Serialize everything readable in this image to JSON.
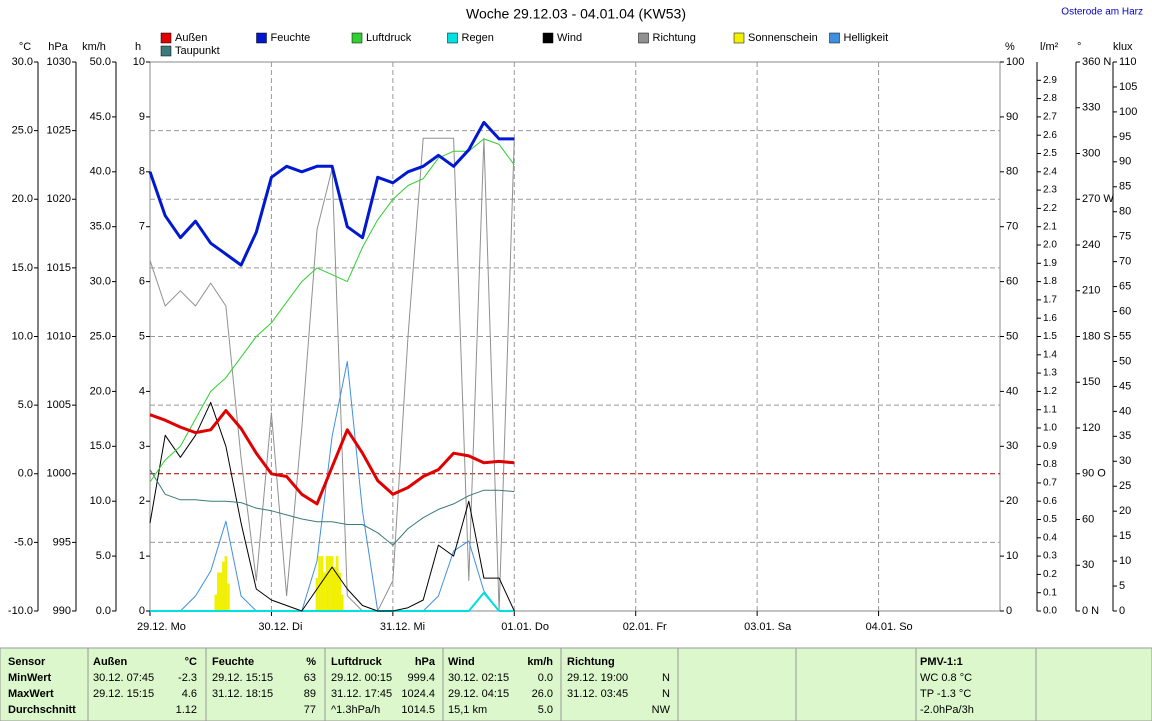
{
  "chart_data": {
    "type": "line",
    "title": "Woche 29.12.03 - 04.01.04 (KW53)",
    "location": "Osterode am Harz",
    "xlim": [
      0,
      168
    ],
    "xticks": [
      {
        "value": 0,
        "label": "29.12. Mo"
      },
      {
        "value": 24,
        "label": "30.12. Di"
      },
      {
        "value": 48,
        "label": "31.12. Mi"
      },
      {
        "value": 72,
        "label": "01.01. Do"
      },
      {
        "value": 96,
        "label": "02.01. Fr"
      },
      {
        "value": 120,
        "label": "03.01. Sa"
      },
      {
        "value": 144,
        "label": "04.01. So"
      }
    ],
    "x": [
      0,
      3,
      6,
      9,
      12,
      15,
      18,
      21,
      24,
      27,
      30,
      33,
      36,
      39,
      42,
      45,
      48,
      51,
      54,
      57,
      60,
      63,
      66,
      69,
      72
    ],
    "grid": true,
    "zero_line_color": "#a00000",
    "axes": {
      "c": {
        "unit": "°C",
        "lim": [
          -10,
          30
        ],
        "ticks": [
          {
            "value": -10,
            "label": "-10.0"
          },
          {
            "value": -5,
            "label": "-5.0"
          },
          {
            "value": 0,
            "label": "0.0"
          },
          {
            "value": 5,
            "label": "5.0"
          },
          {
            "value": 10,
            "label": "10.0"
          },
          {
            "value": 15,
            "label": "15.0"
          },
          {
            "value": 20,
            "label": "20.0"
          },
          {
            "value": 25,
            "label": "25.0"
          },
          {
            "value": 30,
            "label": "30.0"
          }
        ]
      },
      "hpa": {
        "unit": "hPa",
        "lim": [
          990,
          1030
        ],
        "ticks": [
          990,
          995,
          1000,
          1005,
          1010,
          1015,
          1020,
          1025,
          1030
        ]
      },
      "kmh": {
        "unit": "km/h",
        "lim": [
          0,
          50
        ],
        "ticks": [
          {
            "value": 0,
            "label": "0.0"
          },
          {
            "value": 5,
            "label": "5.0"
          },
          {
            "value": 10,
            "label": "10.0"
          },
          {
            "value": 15,
            "label": "15.0"
          },
          {
            "value": 20,
            "label": "20.0"
          },
          {
            "value": 25,
            "label": "25.0"
          },
          {
            "value": 30,
            "label": "30.0"
          },
          {
            "value": 35,
            "label": "35.0"
          },
          {
            "value": 40,
            "label": "40.0"
          },
          {
            "value": 45,
            "label": "45.0"
          },
          {
            "value": 50,
            "label": "50.0"
          }
        ]
      },
      "h": {
        "unit": "h",
        "lim": [
          0,
          10
        ],
        "ticks": [
          0,
          1,
          2,
          3,
          4,
          5,
          6,
          7,
          8,
          9,
          10
        ]
      },
      "pct": {
        "unit": "%",
        "lim": [
          0,
          100
        ],
        "ticks": [
          0,
          10,
          20,
          30,
          40,
          50,
          60,
          70,
          80,
          90,
          100
        ]
      },
      "mm": {
        "unit": "l/m²",
        "lim": [
          0,
          3
        ],
        "ticks": [
          {
            "value": 0,
            "label": "0.0"
          },
          0.1,
          0.2,
          0.3,
          0.4,
          0.5,
          0.6,
          0.7,
          0.8,
          0.9,
          {
            "value": 1,
            "label": "1.0"
          },
          1.1,
          1.2,
          1.3,
          1.4,
          1.5,
          1.6,
          1.7,
          1.8,
          1.9,
          {
            "value": 2,
            "label": "2.0"
          },
          2.1,
          2.2,
          2.3,
          2.4,
          2.5,
          2.6,
          2.7,
          2.8,
          2.9
        ]
      },
      "deg": {
        "unit": "°",
        "lim": [
          0,
          360
        ],
        "ticks": [
          {
            "value": 0,
            "label": "0 N"
          },
          30,
          60,
          {
            "value": 90,
            "label": "90 O"
          },
          120,
          150,
          {
            "value": 180,
            "label": "180 S"
          },
          210,
          240,
          {
            "value": 270,
            "label": "270 W"
          },
          300,
          330,
          {
            "value": 360,
            "label": "360 N"
          }
        ]
      },
      "klux": {
        "unit": "klux",
        "lim": [
          0,
          110
        ],
        "ticks": [
          0,
          5,
          10,
          15,
          20,
          25,
          30,
          35,
          40,
          45,
          50,
          55,
          60,
          65,
          70,
          75,
          80,
          85,
          90,
          95,
          100,
          105,
          110
        ]
      }
    },
    "series": [
      {
        "name": "Außen",
        "color": "#e00000",
        "axis": "c",
        "width": 3,
        "values": [
          4.3,
          3.9,
          3.4,
          3.0,
          3.2,
          4.6,
          3.3,
          1.5,
          0.0,
          -0.2,
          -1.5,
          -2.2,
          0.5,
          3.2,
          1.5,
          -0.5,
          -1.5,
          -1.0,
          -0.2,
          0.3,
          1.5,
          1.3,
          0.8,
          0.9,
          0.8
        ]
      },
      {
        "name": "Feuchte",
        "color": "#0018d0",
        "axis": "pct",
        "width": 3,
        "values": [
          80,
          72,
          68,
          71,
          67,
          65,
          63,
          69,
          79,
          81,
          80,
          81,
          81,
          70,
          68,
          79,
          78,
          80,
          81,
          83,
          81,
          84,
          89,
          86,
          86
        ]
      },
      {
        "name": "Luftdruck",
        "color": "#30d030",
        "axis": "hpa",
        "width": 1,
        "values": [
          999.4,
          1001,
          1002,
          1004,
          1006,
          1007,
          1008.5,
          1010,
          1011,
          1012.5,
          1014,
          1015,
          1014.5,
          1014,
          1016.5,
          1018.5,
          1020,
          1021,
          1021.5,
          1023,
          1023.5,
          1023.5,
          1024.4,
          1024,
          1022.5
        ]
      },
      {
        "name": "Regen",
        "color": "#00e0e0",
        "axis": "mm",
        "width": 2,
        "values": [
          0,
          0,
          0,
          0,
          0,
          0,
          0,
          0,
          0,
          0,
          0,
          0,
          0,
          0,
          0,
          0,
          0,
          0,
          0,
          0,
          0,
          0,
          0.1,
          0,
          0
        ]
      },
      {
        "name": "Wind",
        "color": "#000000",
        "axis": "kmh",
        "width": 1,
        "values": [
          8,
          16,
          14,
          16,
          19,
          15,
          8,
          2,
          1,
          0.5,
          0,
          2,
          4,
          2,
          0.5,
          0,
          0,
          0.3,
          1,
          6,
          5,
          10,
          3,
          3,
          0
        ]
      },
      {
        "name": "Richtung",
        "color": "#909090",
        "axis": "deg",
        "width": 1,
        "values": [
          230,
          200,
          210,
          200,
          215,
          200,
          100,
          20,
          130,
          10,
          120,
          250,
          290,
          10,
          0,
          0,
          20,
          180,
          310,
          310,
          310,
          20,
          310,
          0,
          310
        ]
      },
      {
        "name": "Sonnenschein",
        "color": "#f0f000",
        "axis": "h",
        "mark": "bar",
        "x": [
          13,
          13.5,
          14,
          14.5,
          15,
          15.5,
          33,
          33.5,
          34,
          34.5,
          35,
          35.5,
          36,
          36.5,
          37,
          37.5,
          38
        ],
        "values": [
          0.3,
          0.7,
          0.7,
          0.9,
          1.0,
          0.5,
          0.6,
          1.0,
          1.0,
          0.7,
          1.0,
          1.0,
          1.0,
          0.8,
          1.0,
          0.7,
          0.3
        ]
      },
      {
        "name": "Helligkeit",
        "color": "#4090e0",
        "axis": "klux",
        "width": 1,
        "values": [
          0,
          0,
          0,
          3,
          8,
          18,
          3,
          0,
          0,
          0,
          0,
          10,
          35,
          50,
          20,
          0,
          0,
          0,
          0,
          3,
          12,
          14,
          4,
          0,
          0
        ]
      },
      {
        "name": "Taupunkt",
        "color": "#3a7a7a",
        "axis": "c",
        "width": 1,
        "values": [
          0.3,
          -1.5,
          -1.9,
          -1.9,
          -2.0,
          -2.0,
          -2.1,
          -2.5,
          -2.7,
          -3.0,
          -3.3,
          -3.5,
          -3.5,
          -3.7,
          -3.7,
          -4.3,
          -5.2,
          -4.0,
          -3.2,
          -2.6,
          -2.2,
          -1.6,
          -1.2,
          -1.2,
          -1.3
        ]
      }
    ]
  },
  "table": {
    "header": [
      "Sensor",
      "Außen",
      "°C",
      "Feuchte",
      "%",
      "Luftdruck",
      "hPa",
      "Wind",
      "km/h",
      "Richtung",
      "PMV-1:1"
    ],
    "rows": [
      [
        "MinWert",
        "30.12.  07:45",
        "-2.3",
        "29.12.  15:15",
        "63",
        "29.12.  00:15",
        "999.4",
        "30.12.  02:15",
        "0.0",
        "29.12.  19:00",
        "N",
        "WC 0.8 °C"
      ],
      [
        "MaxWert",
        "29.12.  15:15",
        "4.6",
        "31.12.  18:15",
        "89",
        "31.12.  17:45",
        "1024.4",
        "29.12.  04:15",
        "26.0",
        "31.12.  03:45",
        "N",
        "TP -1.3 °C"
      ],
      [
        "Durchschnitt",
        null,
        "1.12",
        null,
        "77",
        "^1.3hPa/h",
        "1014.5",
        "15,1 km",
        "5.0",
        null,
        "NW",
        "-2.0hPa/3h"
      ]
    ]
  }
}
